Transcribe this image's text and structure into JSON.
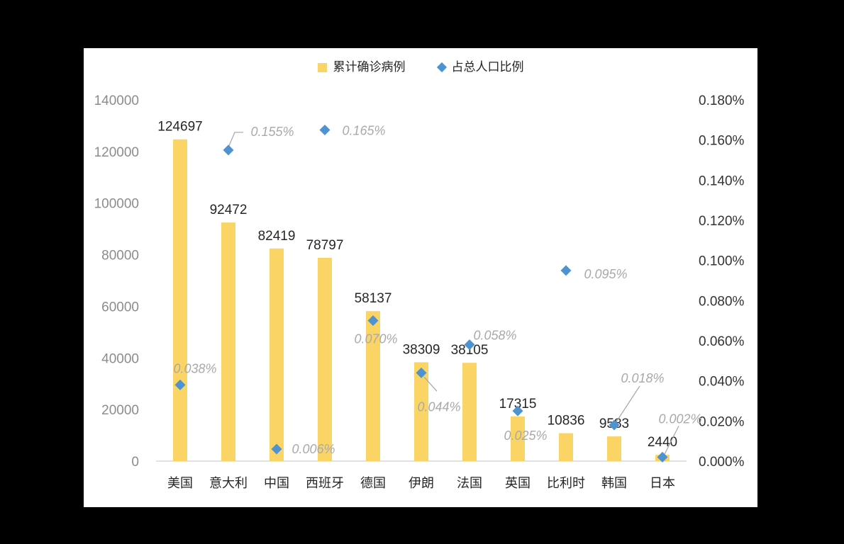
{
  "page": {
    "background": "#000000",
    "card_background": "#FFFFFF"
  },
  "legend": {
    "items": [
      {
        "label": "累计确诊病例",
        "marker": "square",
        "color": "#FAD566"
      },
      {
        "label": "占总人口比例",
        "marker": "diamond",
        "color": "#4E92CF"
      }
    ]
  },
  "chart_data": {
    "type": "bar",
    "subtype": "combo-bar-scatter-dual-axis",
    "title": "",
    "grid": false,
    "legend_position": "top-center",
    "categories": [
      "美国",
      "意大利",
      "中国",
      "西班牙",
      "德国",
      "伊朗",
      "法国",
      "英国",
      "比利时",
      "韩国",
      "日本"
    ],
    "series": [
      {
        "name": "累计确诊病例",
        "type": "bar",
        "axis": "left",
        "color": "#FAD566",
        "values": [
          124697,
          92472,
          82419,
          78797,
          58137,
          38309,
          38105,
          17315,
          10836,
          9583,
          2440
        ],
        "value_labels": [
          "124697",
          "92472",
          "82419",
          "78797",
          "58137",
          "38309",
          "38105",
          "17315",
          "10836",
          "9583",
          "2440"
        ]
      },
      {
        "name": "占总人口比例",
        "type": "scatter",
        "marker": "diamond",
        "axis": "right",
        "color": "#4E92CF",
        "values_percent": [
          0.038,
          0.155,
          0.006,
          0.165,
          0.07,
          0.044,
          0.058,
          0.025,
          0.095,
          0.018,
          0.002
        ],
        "point_labels": [
          "0.038%",
          "0.155%",
          "0.006%",
          "0.165%",
          "0.070%",
          "0.044%",
          "0.058%",
          "0.025%",
          "0.095%",
          "0.018%",
          "0.002%"
        ],
        "label_offsets": [
          {
            "dx": 21,
            "dy": -17
          },
          {
            "dx": 62,
            "dy": -20,
            "leader": [
              [
                0,
                -4
              ],
              [
                9,
                -25
              ],
              [
                21,
                -25
              ]
            ]
          },
          {
            "dx": 52,
            "dy": 6
          },
          {
            "dx": 55,
            "dy": 7
          },
          {
            "dx": 4,
            "dy": 32
          },
          {
            "dx": 25,
            "dy": 54,
            "leader": [
              [
                4,
                6
              ],
              [
                22,
                26
              ]
            ]
          },
          {
            "dx": 36,
            "dy": -7
          },
          {
            "dx": 11,
            "dy": 41
          },
          {
            "dx": 56,
            "dy": 11
          },
          {
            "dx": 40,
            "dy": -60,
            "leader": [
              [
                36,
                -55
              ],
              [
                2,
                -3
              ]
            ]
          },
          {
            "dx": 25,
            "dy": -48,
            "leader": [
              [
                23,
                -44
              ],
              [
                3,
                -4
              ]
            ]
          }
        ]
      }
    ],
    "left_axis": {
      "min": 0,
      "max": 140000,
      "ticks": [
        "140000",
        "120000",
        "100000",
        "80000",
        "60000",
        "40000",
        "20000",
        "0"
      ]
    },
    "right_axis": {
      "min": 0,
      "max": 0.18,
      "ticks": [
        "0.180%",
        "0.160%",
        "0.140%",
        "0.120%",
        "0.100%",
        "0.080%",
        "0.060%",
        "0.040%",
        "0.020%",
        "0.000%"
      ]
    },
    "styles": {
      "bar_color": "#FAD566",
      "marker_color": "#4E92CF",
      "value_label_color": "#262626",
      "point_label_color": "#A9A9A9",
      "category_label_color": "#262626",
      "left_tick_color": "#8C8C8C",
      "right_tick_color": "#333333",
      "axis_line_color": "#D9D9D9",
      "leader_line_color": "#A6A6A6",
      "legend_text_color": "#262626"
    }
  }
}
